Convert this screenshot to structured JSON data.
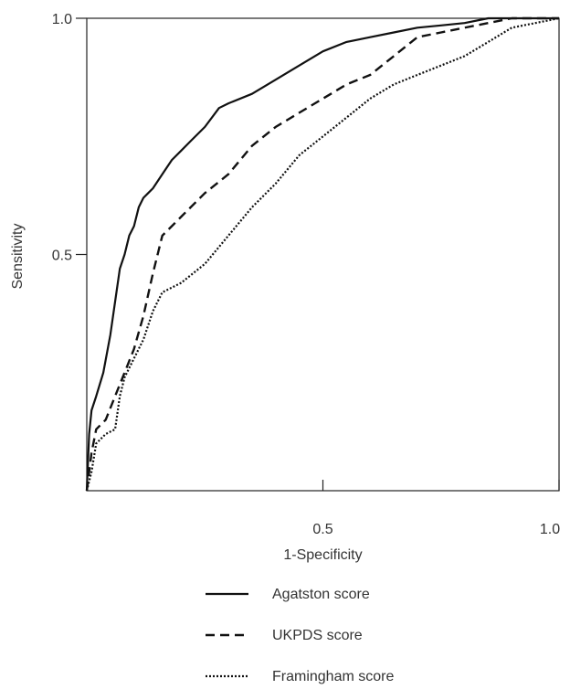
{
  "chart_data": {
    "type": "line",
    "title": "",
    "xlabel": "1-Specificity",
    "ylabel": "Sensitivity",
    "xlim": [
      0,
      1
    ],
    "ylim": [
      0,
      1
    ],
    "x_ticks": [
      "0.5",
      "1.0"
    ],
    "y_ticks": [
      "0.5",
      "1.0"
    ],
    "grid": false,
    "legend_position": "bottom",
    "series": [
      {
        "name": "Agatston score",
        "line_style": "solid",
        "x": [
          0,
          0.005,
          0.01,
          0.02,
          0.035,
          0.05,
          0.06,
          0.07,
          0.08,
          0.09,
          0.1,
          0.11,
          0.12,
          0.13,
          0.14,
          0.16,
          0.18,
          0.2,
          0.22,
          0.25,
          0.28,
          0.3,
          0.35,
          0.4,
          0.45,
          0.5,
          0.55,
          0.6,
          0.65,
          0.7,
          0.75,
          0.8,
          0.85,
          0.9,
          0.95,
          1.0
        ],
        "y": [
          0,
          0.12,
          0.17,
          0.2,
          0.25,
          0.33,
          0.4,
          0.47,
          0.5,
          0.54,
          0.56,
          0.6,
          0.62,
          0.63,
          0.64,
          0.67,
          0.7,
          0.72,
          0.74,
          0.77,
          0.81,
          0.82,
          0.84,
          0.87,
          0.9,
          0.93,
          0.95,
          0.96,
          0.97,
          0.98,
          0.985,
          0.99,
          1.0,
          1.0,
          1.0,
          1.0
        ]
      },
      {
        "name": "UKPDS score",
        "line_style": "dashed",
        "x": [
          0,
          0.01,
          0.02,
          0.04,
          0.06,
          0.08,
          0.1,
          0.12,
          0.14,
          0.16,
          0.18,
          0.2,
          0.25,
          0.3,
          0.35,
          0.4,
          0.45,
          0.5,
          0.55,
          0.6,
          0.65,
          0.7,
          0.75,
          0.8,
          0.85,
          0.9,
          0.95,
          1.0
        ],
        "y": [
          0,
          0.08,
          0.13,
          0.15,
          0.2,
          0.25,
          0.3,
          0.37,
          0.46,
          0.54,
          0.56,
          0.58,
          0.63,
          0.67,
          0.73,
          0.77,
          0.8,
          0.83,
          0.86,
          0.88,
          0.92,
          0.96,
          0.97,
          0.98,
          0.99,
          1.0,
          1.0,
          1.0
        ]
      },
      {
        "name": "Framingham score",
        "line_style": "dotted",
        "x": [
          0,
          0.01,
          0.02,
          0.04,
          0.06,
          0.07,
          0.08,
          0.1,
          0.12,
          0.14,
          0.16,
          0.18,
          0.2,
          0.25,
          0.3,
          0.35,
          0.4,
          0.45,
          0.5,
          0.55,
          0.6,
          0.65,
          0.7,
          0.75,
          0.8,
          0.85,
          0.9,
          0.95,
          1.0
        ],
        "y": [
          0,
          0.04,
          0.1,
          0.12,
          0.13,
          0.2,
          0.24,
          0.28,
          0.32,
          0.38,
          0.42,
          0.43,
          0.44,
          0.48,
          0.54,
          0.6,
          0.65,
          0.71,
          0.75,
          0.79,
          0.83,
          0.86,
          0.88,
          0.9,
          0.92,
          0.95,
          0.98,
          0.99,
          1.0
        ]
      }
    ]
  }
}
